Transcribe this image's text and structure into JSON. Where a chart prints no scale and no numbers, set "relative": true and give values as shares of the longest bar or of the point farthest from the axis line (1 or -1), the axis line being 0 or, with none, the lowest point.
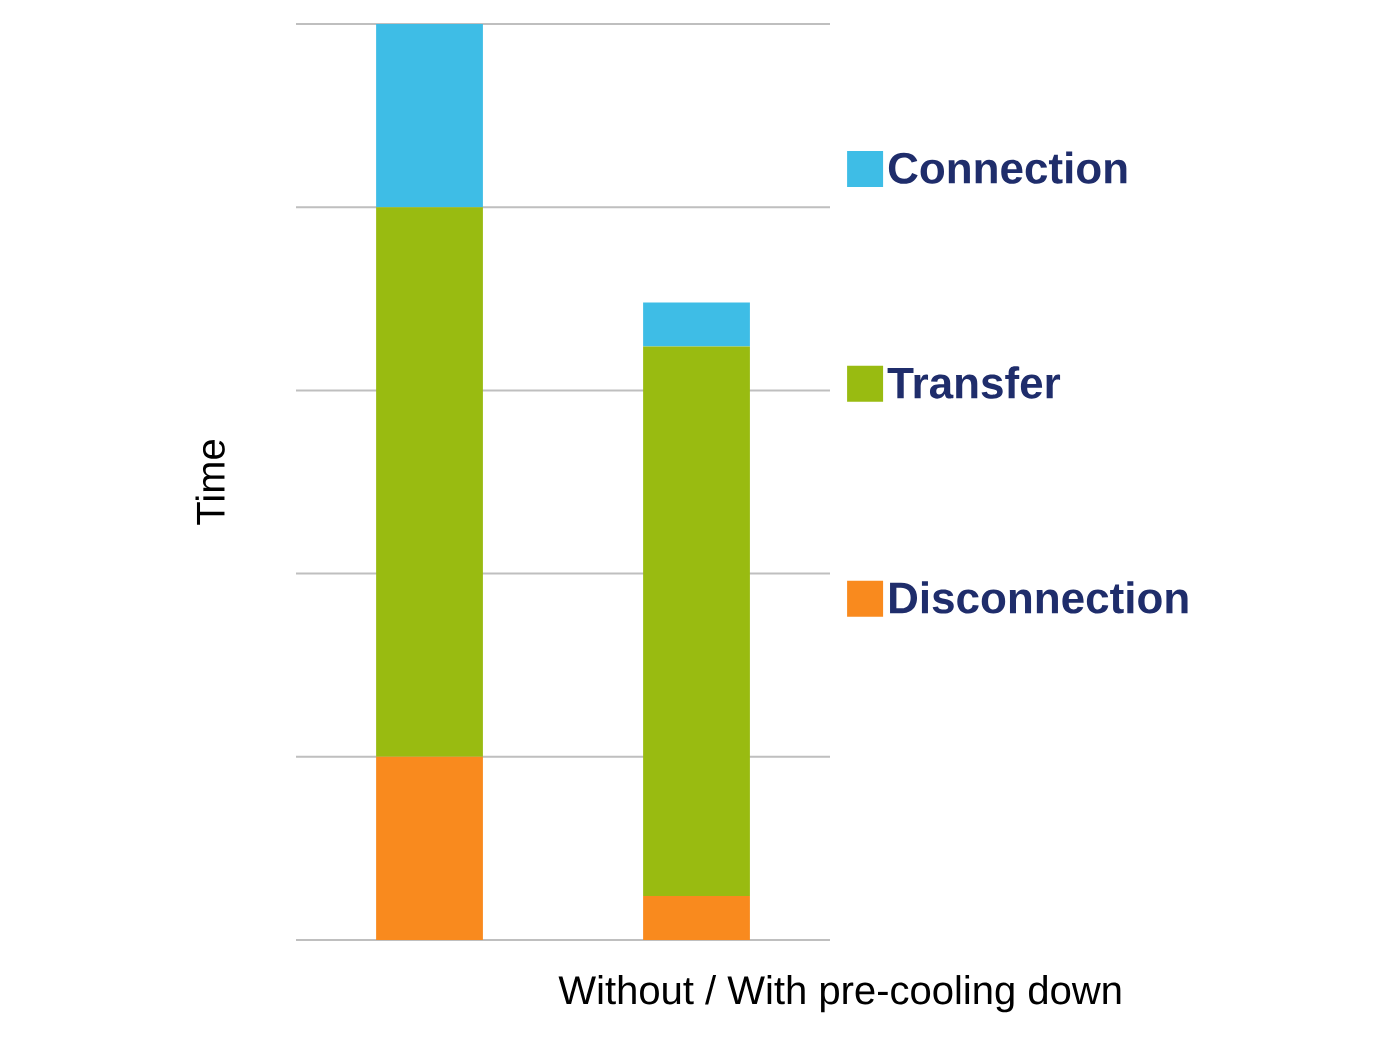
{
  "chart_data": {
    "type": "bar",
    "stacked": true,
    "relative": true,
    "xlabel": "Without / With pre-cooling down",
    "ylabel": "Time",
    "categories": [
      null,
      null
    ],
    "series": [
      {
        "name": "Disconnection",
        "color": "#f98a1e",
        "values": [
          0.2,
          0.048
        ]
      },
      {
        "name": "Transfer",
        "color": "#99bb11",
        "values": [
          0.6,
          0.6
        ]
      },
      {
        "name": "Connection",
        "color": "#3ebde6",
        "values": [
          0.2,
          0.048
        ]
      }
    ],
    "grid": "y",
    "legend": "right"
  }
}
